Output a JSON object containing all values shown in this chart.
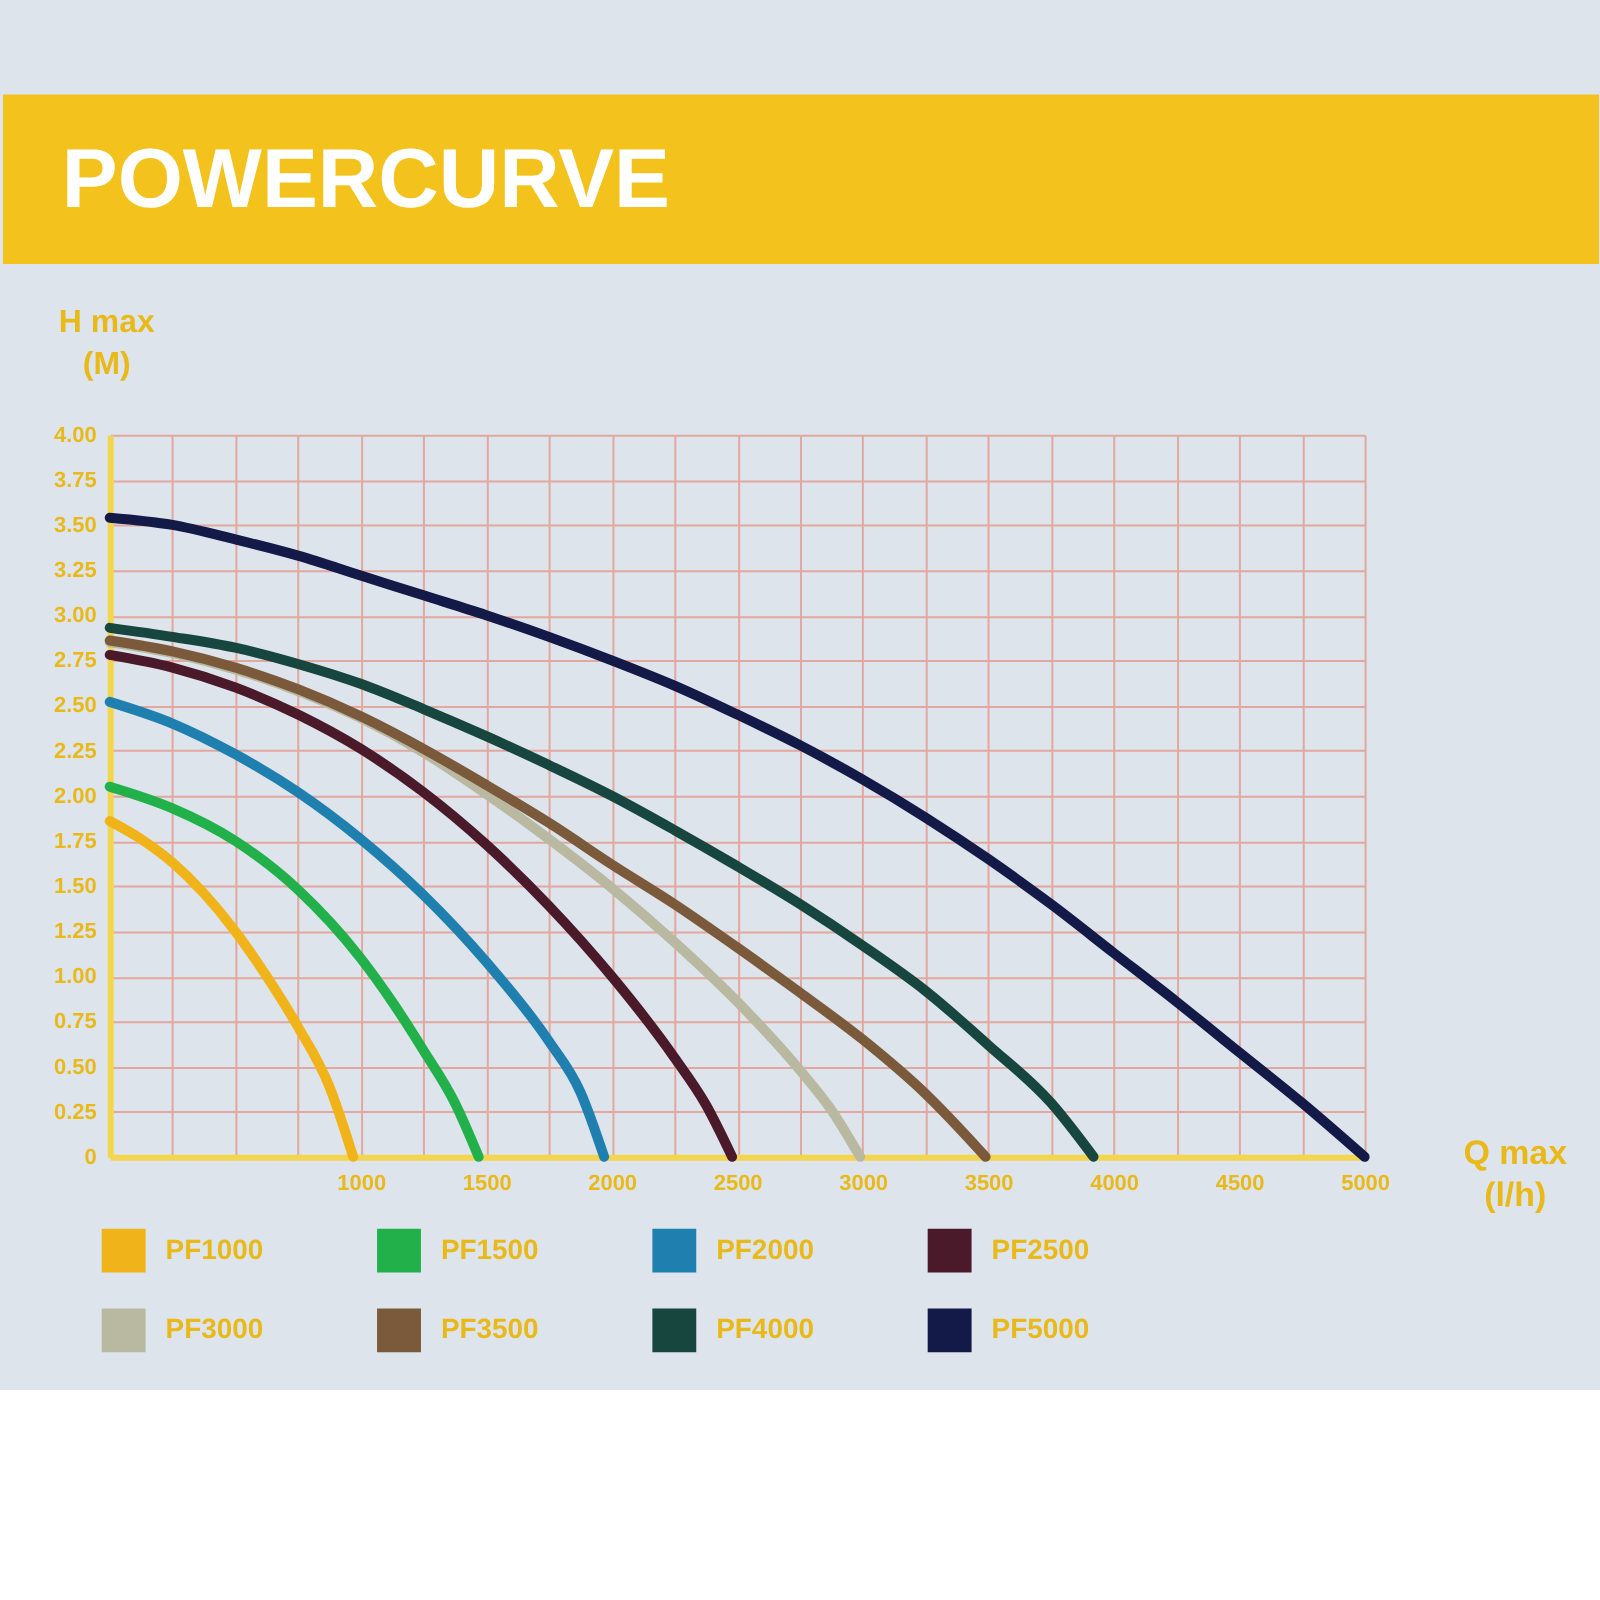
{
  "chart_data": {
    "type": "line",
    "title": "POWERCURVE",
    "xlabel": "Q max\n(l/h)",
    "ylabel": "H max\n(M)",
    "xlim": [
      0,
      5000
    ],
    "ylim": [
      0,
      4
    ],
    "xticks": [
      {
        "value": 250,
        "label": null
      },
      {
        "value": 500,
        "label": null
      },
      {
        "value": 750,
        "label": null
      },
      1000,
      {
        "value": 1250,
        "label": null
      },
      1500,
      {
        "value": 1750,
        "label": null
      },
      2000,
      {
        "value": 2250,
        "label": null
      },
      2500,
      {
        "value": 2750,
        "label": null
      },
      3000,
      {
        "value": 3250,
        "label": null
      },
      3500,
      {
        "value": 3750,
        "label": null
      },
      4000,
      {
        "value": 4250,
        "label": null
      },
      4500,
      {
        "value": 4750,
        "label": null
      },
      5000
    ],
    "yticks": [
      0,
      0.25,
      {
        "value": 0.5,
        "label": "0.50"
      },
      0.75,
      {
        "value": 1,
        "label": "1.00"
      },
      1.25,
      {
        "value": 1.5,
        "label": "1.50"
      },
      1.75,
      {
        "value": 2,
        "label": "2.00"
      },
      2.25,
      {
        "value": 2.5,
        "label": "2.50"
      },
      2.75,
      {
        "value": 3,
        "label": "3.00"
      },
      3.25,
      {
        "value": 3.5,
        "label": "3.50"
      },
      3.75,
      {
        "value": 4,
        "label": "4.00"
      }
    ],
    "grid": true,
    "legend": "bottom",
    "series": [
      {
        "name": "PF1000",
        "color": "#f0b41a",
        "x": [
          0,
          125,
          250,
          375,
          500,
          625,
          750,
          875,
          970
        ],
        "values": [
          1.86,
          1.76,
          1.63,
          1.46,
          1.25,
          1.0,
          0.72,
          0.39,
          0
        ]
      },
      {
        "name": "PF1500",
        "color": "#22b04a",
        "x": [
          0,
          250,
          500,
          750,
          1000,
          1125,
          1250,
          1375,
          1470
        ],
        "values": [
          2.05,
          1.93,
          1.75,
          1.48,
          1.1,
          0.86,
          0.59,
          0.3,
          0
        ]
      },
      {
        "name": "PF2000",
        "color": "#1f7fae",
        "x": [
          0,
          250,
          500,
          750,
          1000,
          1250,
          1500,
          1750,
          1875,
          1970
        ],
        "values": [
          2.52,
          2.4,
          2.23,
          2.02,
          1.76,
          1.45,
          1.08,
          0.64,
          0.36,
          0
        ]
      },
      {
        "name": "PF2500",
        "color": "#4a1a2a",
        "x": [
          0,
          250,
          500,
          750,
          1000,
          1250,
          1500,
          1750,
          2000,
          2250,
          2375,
          2480
        ],
        "values": [
          2.78,
          2.71,
          2.6,
          2.45,
          2.26,
          2.02,
          1.73,
          1.39,
          1.0,
          0.55,
          0.29,
          0
        ]
      },
      {
        "name": "PF3000",
        "color": "#b9b9a2",
        "x": [
          0,
          250,
          500,
          750,
          1000,
          1250,
          1500,
          1750,
          2000,
          2250,
          2500,
          2750,
          2875,
          2990
        ],
        "values": [
          2.85,
          2.79,
          2.7,
          2.58,
          2.43,
          2.24,
          2.01,
          1.76,
          1.49,
          1.19,
          0.86,
          0.48,
          0.26,
          0
        ]
      },
      {
        "name": "PF3500",
        "color": "#7a5a3a",
        "x": [
          0,
          250,
          500,
          750,
          1000,
          1250,
          1500,
          1750,
          2000,
          2250,
          2500,
          2750,
          3000,
          3250,
          3490
        ],
        "values": [
          2.86,
          2.8,
          2.71,
          2.59,
          2.44,
          2.26,
          2.06,
          1.85,
          1.62,
          1.4,
          1.16,
          0.91,
          0.65,
          0.35,
          0
        ]
      },
      {
        "name": "PF4000",
        "color": "#17463e",
        "x": [
          0,
          250,
          500,
          750,
          1000,
          1250,
          1500,
          1750,
          2000,
          2250,
          2500,
          2750,
          3000,
          3250,
          3500,
          3750,
          3920
        ],
        "values": [
          2.93,
          2.88,
          2.82,
          2.73,
          2.62,
          2.48,
          2.33,
          2.17,
          2.0,
          1.81,
          1.61,
          1.4,
          1.17,
          0.92,
          0.62,
          0.3,
          0
        ]
      },
      {
        "name": "PF5000",
        "color": "#141a48",
        "x": [
          0,
          250,
          500,
          750,
          1000,
          1250,
          1500,
          1750,
          2000,
          2250,
          2500,
          2750,
          3000,
          3250,
          3500,
          3750,
          4000,
          4250,
          4500,
          4750,
          5000
        ],
        "values": [
          3.54,
          3.5,
          3.42,
          3.33,
          3.22,
          3.11,
          3.0,
          2.88,
          2.75,
          2.61,
          2.45,
          2.28,
          2.09,
          1.88,
          1.65,
          1.4,
          1.13,
          0.86,
          0.58,
          0.3,
          0
        ]
      }
    ]
  }
}
